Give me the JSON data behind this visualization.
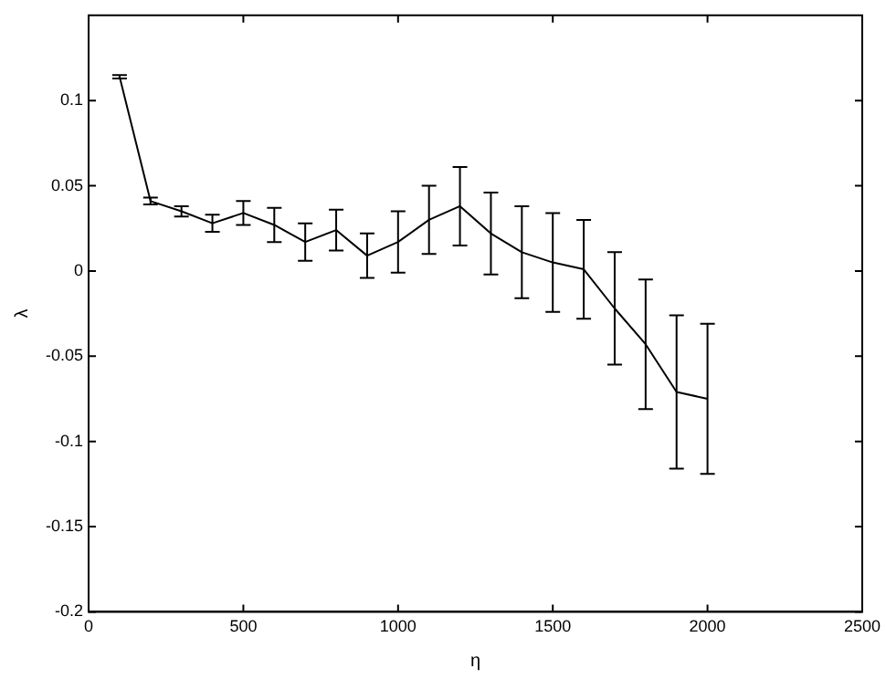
{
  "chart_data": {
    "type": "line",
    "xlabel": "η",
    "ylabel": "λ",
    "x": [
      100,
      200,
      300,
      400,
      500,
      600,
      700,
      800,
      900,
      1000,
      1100,
      1200,
      1300,
      1400,
      1500,
      1600,
      1700,
      1800,
      1900,
      2000
    ],
    "series": [
      {
        "color": "#000000",
        "values": [
          0.114,
          0.041,
          0.035,
          0.028,
          0.034,
          0.027,
          0.017,
          0.024,
          0.009,
          0.017,
          0.03,
          0.038,
          0.022,
          0.011,
          0.005,
          0.001,
          -0.022,
          -0.043,
          -0.071,
          -0.075
        ],
        "errors": [
          0.001,
          0.002,
          0.003,
          0.005,
          0.007,
          0.01,
          0.011,
          0.012,
          0.013,
          0.018,
          0.02,
          0.023,
          0.024,
          0.027,
          0.029,
          0.029,
          0.033,
          0.038,
          0.045,
          0.044
        ]
      }
    ],
    "xlim": [
      0,
      2500
    ],
    "xticks": [
      0,
      500,
      1000,
      1500,
      2000,
      2500
    ],
    "ylim": [
      -0.2,
      0.15
    ],
    "yticks": [
      -0.2,
      -0.15,
      -0.1,
      -0.05,
      0,
      0.05,
      0.1
    ],
    "grid": false,
    "legend": false,
    "marker": "none",
    "line_style": "solid"
  }
}
